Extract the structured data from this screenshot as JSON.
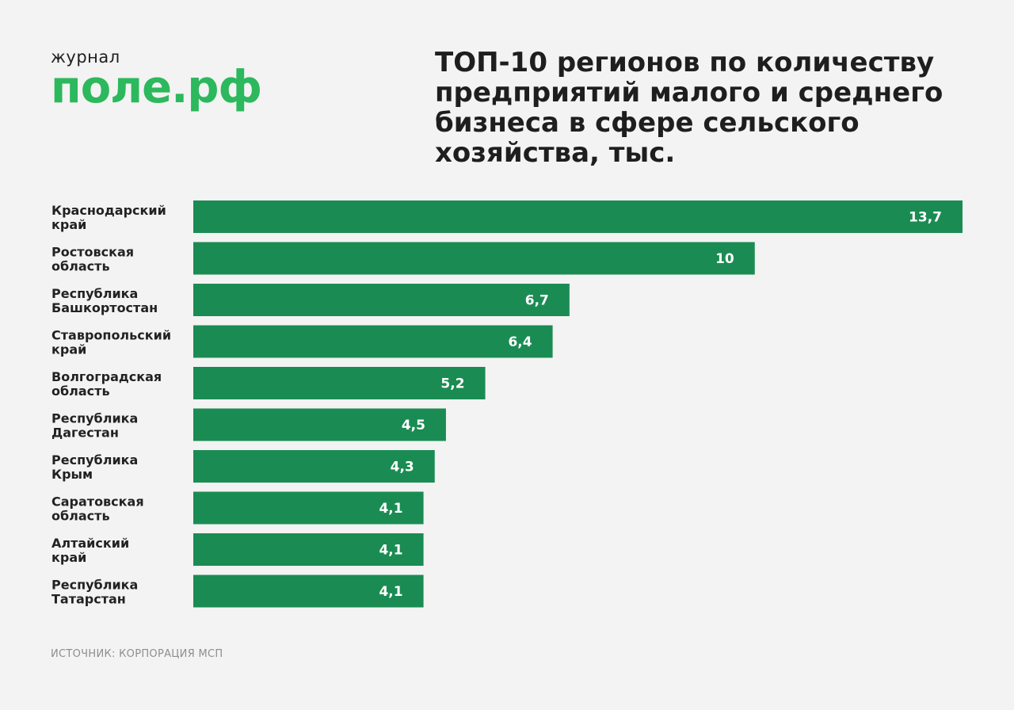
{
  "logo": {
    "small": "журнал",
    "big": "поле.рф"
  },
  "source": "ИСТОЧНИК: КОРПОРАЦИЯ МСП",
  "colors": {
    "bar": "#1a8c53",
    "logo": "#2cb85c",
    "background": "#f3f3f3"
  },
  "chart_data": {
    "type": "bar",
    "orientation": "horizontal",
    "title": "ТОП-10 регионов по количеству предприятий малого и среднего бизнеса в сфере сельского хозяйства, тыс.",
    "categories": [
      [
        "Краснодарский",
        "край"
      ],
      [
        "Ростовская",
        "область"
      ],
      [
        "Республика",
        "Башкортостан"
      ],
      [
        "Ставропольский",
        "край"
      ],
      [
        "Волгоградская",
        "область"
      ],
      [
        "Республика",
        "Дагестан"
      ],
      [
        "Республика",
        "Крым"
      ],
      [
        "Саратовская",
        "область"
      ],
      [
        "Алтайский",
        "край"
      ],
      [
        "Республика",
        "Татарстан"
      ]
    ],
    "values": [
      13.7,
      10,
      6.7,
      6.4,
      5.2,
      4.5,
      4.3,
      4.1,
      4.1,
      4.1
    ],
    "value_labels": [
      "13,7",
      "10",
      "6,7",
      "6,4",
      "5,2",
      "4,5",
      "4,3",
      "4,1",
      "4,1",
      "4,1"
    ],
    "xlim": [
      0,
      13.7
    ],
    "grid": false,
    "legend": "none"
  }
}
